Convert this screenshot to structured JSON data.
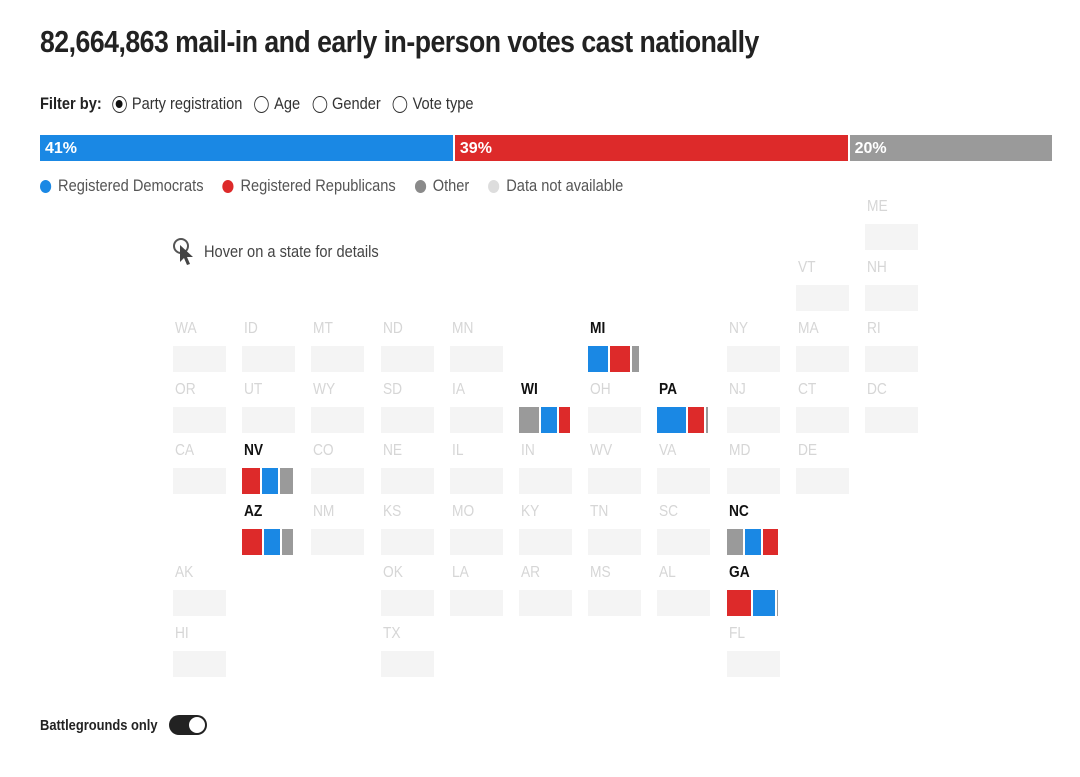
{
  "title": "82,664,863 mail-in and early in-person votes cast nationally",
  "filter": {
    "label": "Filter by:",
    "options": [
      {
        "label": "Party registration",
        "selected": true
      },
      {
        "label": "Age",
        "selected": false
      },
      {
        "label": "Gender",
        "selected": false
      },
      {
        "label": "Vote type",
        "selected": false
      }
    ]
  },
  "national": {
    "dem_pct": 41,
    "rep_pct": 39,
    "oth_pct": 20,
    "dem_label": "41%",
    "rep_label": "39%",
    "oth_label": "20%"
  },
  "colors": {
    "dem": "#1a88e4",
    "rep": "#dd2a2a",
    "other": "#9a9a9a",
    "na": "#dddddd"
  },
  "legend": [
    {
      "label": "Registered Democrats",
      "color": "#1a88e4"
    },
    {
      "label": "Registered Republicans",
      "color": "#dd2a2a"
    },
    {
      "label": "Other",
      "color": "#8a8a8a"
    },
    {
      "label": "Data not available",
      "color": "#dddddd"
    }
  ],
  "hover_hint": "Hover on a state for details",
  "hover_icon": "pointer-hand-icon",
  "states": [
    {
      "abbr": "ME",
      "row": 0,
      "col": 10
    },
    {
      "abbr": "VT",
      "row": 1,
      "col": 9
    },
    {
      "abbr": "NH",
      "row": 1,
      "col": 10
    },
    {
      "abbr": "WA",
      "row": 2,
      "col": 0
    },
    {
      "abbr": "ID",
      "row": 2,
      "col": 1
    },
    {
      "abbr": "MT",
      "row": 2,
      "col": 2
    },
    {
      "abbr": "ND",
      "row": 2,
      "col": 3
    },
    {
      "abbr": "MN",
      "row": 2,
      "col": 4
    },
    {
      "abbr": "MI",
      "row": 2,
      "col": 6,
      "battleground": true,
      "segments": [
        {
          "party": "dem",
          "value": 42
        },
        {
          "party": "rep",
          "value": 40
        },
        {
          "party": "other",
          "value": 18
        }
      ],
      "bars": [
        "dem",
        "rep",
        "other"
      ]
    },
    {
      "abbr": "NY",
      "row": 2,
      "col": 8
    },
    {
      "abbr": "MA",
      "row": 2,
      "col": 9
    },
    {
      "abbr": "RI",
      "row": 2,
      "col": 10
    },
    {
      "abbr": "OR",
      "row": 3,
      "col": 0
    },
    {
      "abbr": "UT",
      "row": 3,
      "col": 1
    },
    {
      "abbr": "WY",
      "row": 3,
      "col": 2
    },
    {
      "abbr": "SD",
      "row": 3,
      "col": 3
    },
    {
      "abbr": "IA",
      "row": 3,
      "col": 4
    },
    {
      "abbr": "WI",
      "row": 3,
      "col": 5,
      "battleground": true,
      "bars": [
        "other",
        "dem",
        "rep"
      ],
      "segments": [
        {
          "party": "other",
          "value": 42
        },
        {
          "party": "dem",
          "value": 33
        },
        {
          "party": "rep",
          "value": 25
        }
      ]
    },
    {
      "abbr": "OH",
      "row": 3,
      "col": 6
    },
    {
      "abbr": "PA",
      "row": 3,
      "col": 7,
      "battleground": true,
      "bars": [
        "dem",
        "rep",
        "other"
      ],
      "segments": [
        {
          "party": "dem",
          "value": 57
        },
        {
          "party": "rep",
          "value": 34
        },
        {
          "party": "other",
          "value": 9
        }
      ]
    },
    {
      "abbr": "NJ",
      "row": 3,
      "col": 8
    },
    {
      "abbr": "CT",
      "row": 3,
      "col": 9
    },
    {
      "abbr": "DC",
      "row": 3,
      "col": 10
    },
    {
      "abbr": "CA",
      "row": 4,
      "col": 0
    },
    {
      "abbr": "NV",
      "row": 4,
      "col": 1,
      "battleground": true,
      "bars": [
        "rep",
        "dem",
        "other"
      ],
      "segments": [
        {
          "party": "rep",
          "value": 37
        },
        {
          "party": "dem",
          "value": 35
        },
        {
          "party": "other",
          "value": 28
        }
      ]
    },
    {
      "abbr": "CO",
      "row": 4,
      "col": 2
    },
    {
      "abbr": "NE",
      "row": 4,
      "col": 3
    },
    {
      "abbr": "IL",
      "row": 4,
      "col": 4
    },
    {
      "abbr": "IN",
      "row": 4,
      "col": 5
    },
    {
      "abbr": "WV",
      "row": 4,
      "col": 6
    },
    {
      "abbr": "VA",
      "row": 4,
      "col": 7
    },
    {
      "abbr": "MD",
      "row": 4,
      "col": 8
    },
    {
      "abbr": "DE",
      "row": 4,
      "col": 9
    },
    {
      "abbr": "AZ",
      "row": 5,
      "col": 1,
      "battleground": true,
      "bars": [
        "rep",
        "dem",
        "other"
      ],
      "segments": [
        {
          "party": "rep",
          "value": 42
        },
        {
          "party": "dem",
          "value": 33
        },
        {
          "party": "other",
          "value": 25
        }
      ]
    },
    {
      "abbr": "NM",
      "row": 5,
      "col": 2
    },
    {
      "abbr": "KS",
      "row": 5,
      "col": 3
    },
    {
      "abbr": "MO",
      "row": 5,
      "col": 4
    },
    {
      "abbr": "KY",
      "row": 5,
      "col": 5
    },
    {
      "abbr": "TN",
      "row": 5,
      "col": 6
    },
    {
      "abbr": "SC",
      "row": 5,
      "col": 7
    },
    {
      "abbr": "NC",
      "row": 5,
      "col": 8,
      "battleground": true,
      "bars": [
        "other",
        "dem",
        "rep"
      ],
      "segments": [
        {
          "party": "other",
          "value": 34
        },
        {
          "party": "dem",
          "value": 34
        },
        {
          "party": "rep",
          "value": 32
        }
      ]
    },
    {
      "abbr": "AK",
      "row": 6,
      "col": 0
    },
    {
      "abbr": "OK",
      "row": 6,
      "col": 3
    },
    {
      "abbr": "LA",
      "row": 6,
      "col": 4
    },
    {
      "abbr": "AR",
      "row": 6,
      "col": 5
    },
    {
      "abbr": "MS",
      "row": 6,
      "col": 6
    },
    {
      "abbr": "AL",
      "row": 6,
      "col": 7
    },
    {
      "abbr": "GA",
      "row": 6,
      "col": 8,
      "battleground": true,
      "bars": [
        "rep",
        "dem",
        "other"
      ],
      "segments": [
        {
          "party": "rep",
          "value": 49
        },
        {
          "party": "dem",
          "value": 47
        },
        {
          "party": "other",
          "value": 4
        }
      ]
    },
    {
      "abbr": "HI",
      "row": 7,
      "col": 0
    },
    {
      "abbr": "TX",
      "row": 7,
      "col": 3
    },
    {
      "abbr": "FL",
      "row": 7,
      "col": 8
    }
  ],
  "toggle": {
    "label": "Battlegrounds only",
    "on": true
  }
}
